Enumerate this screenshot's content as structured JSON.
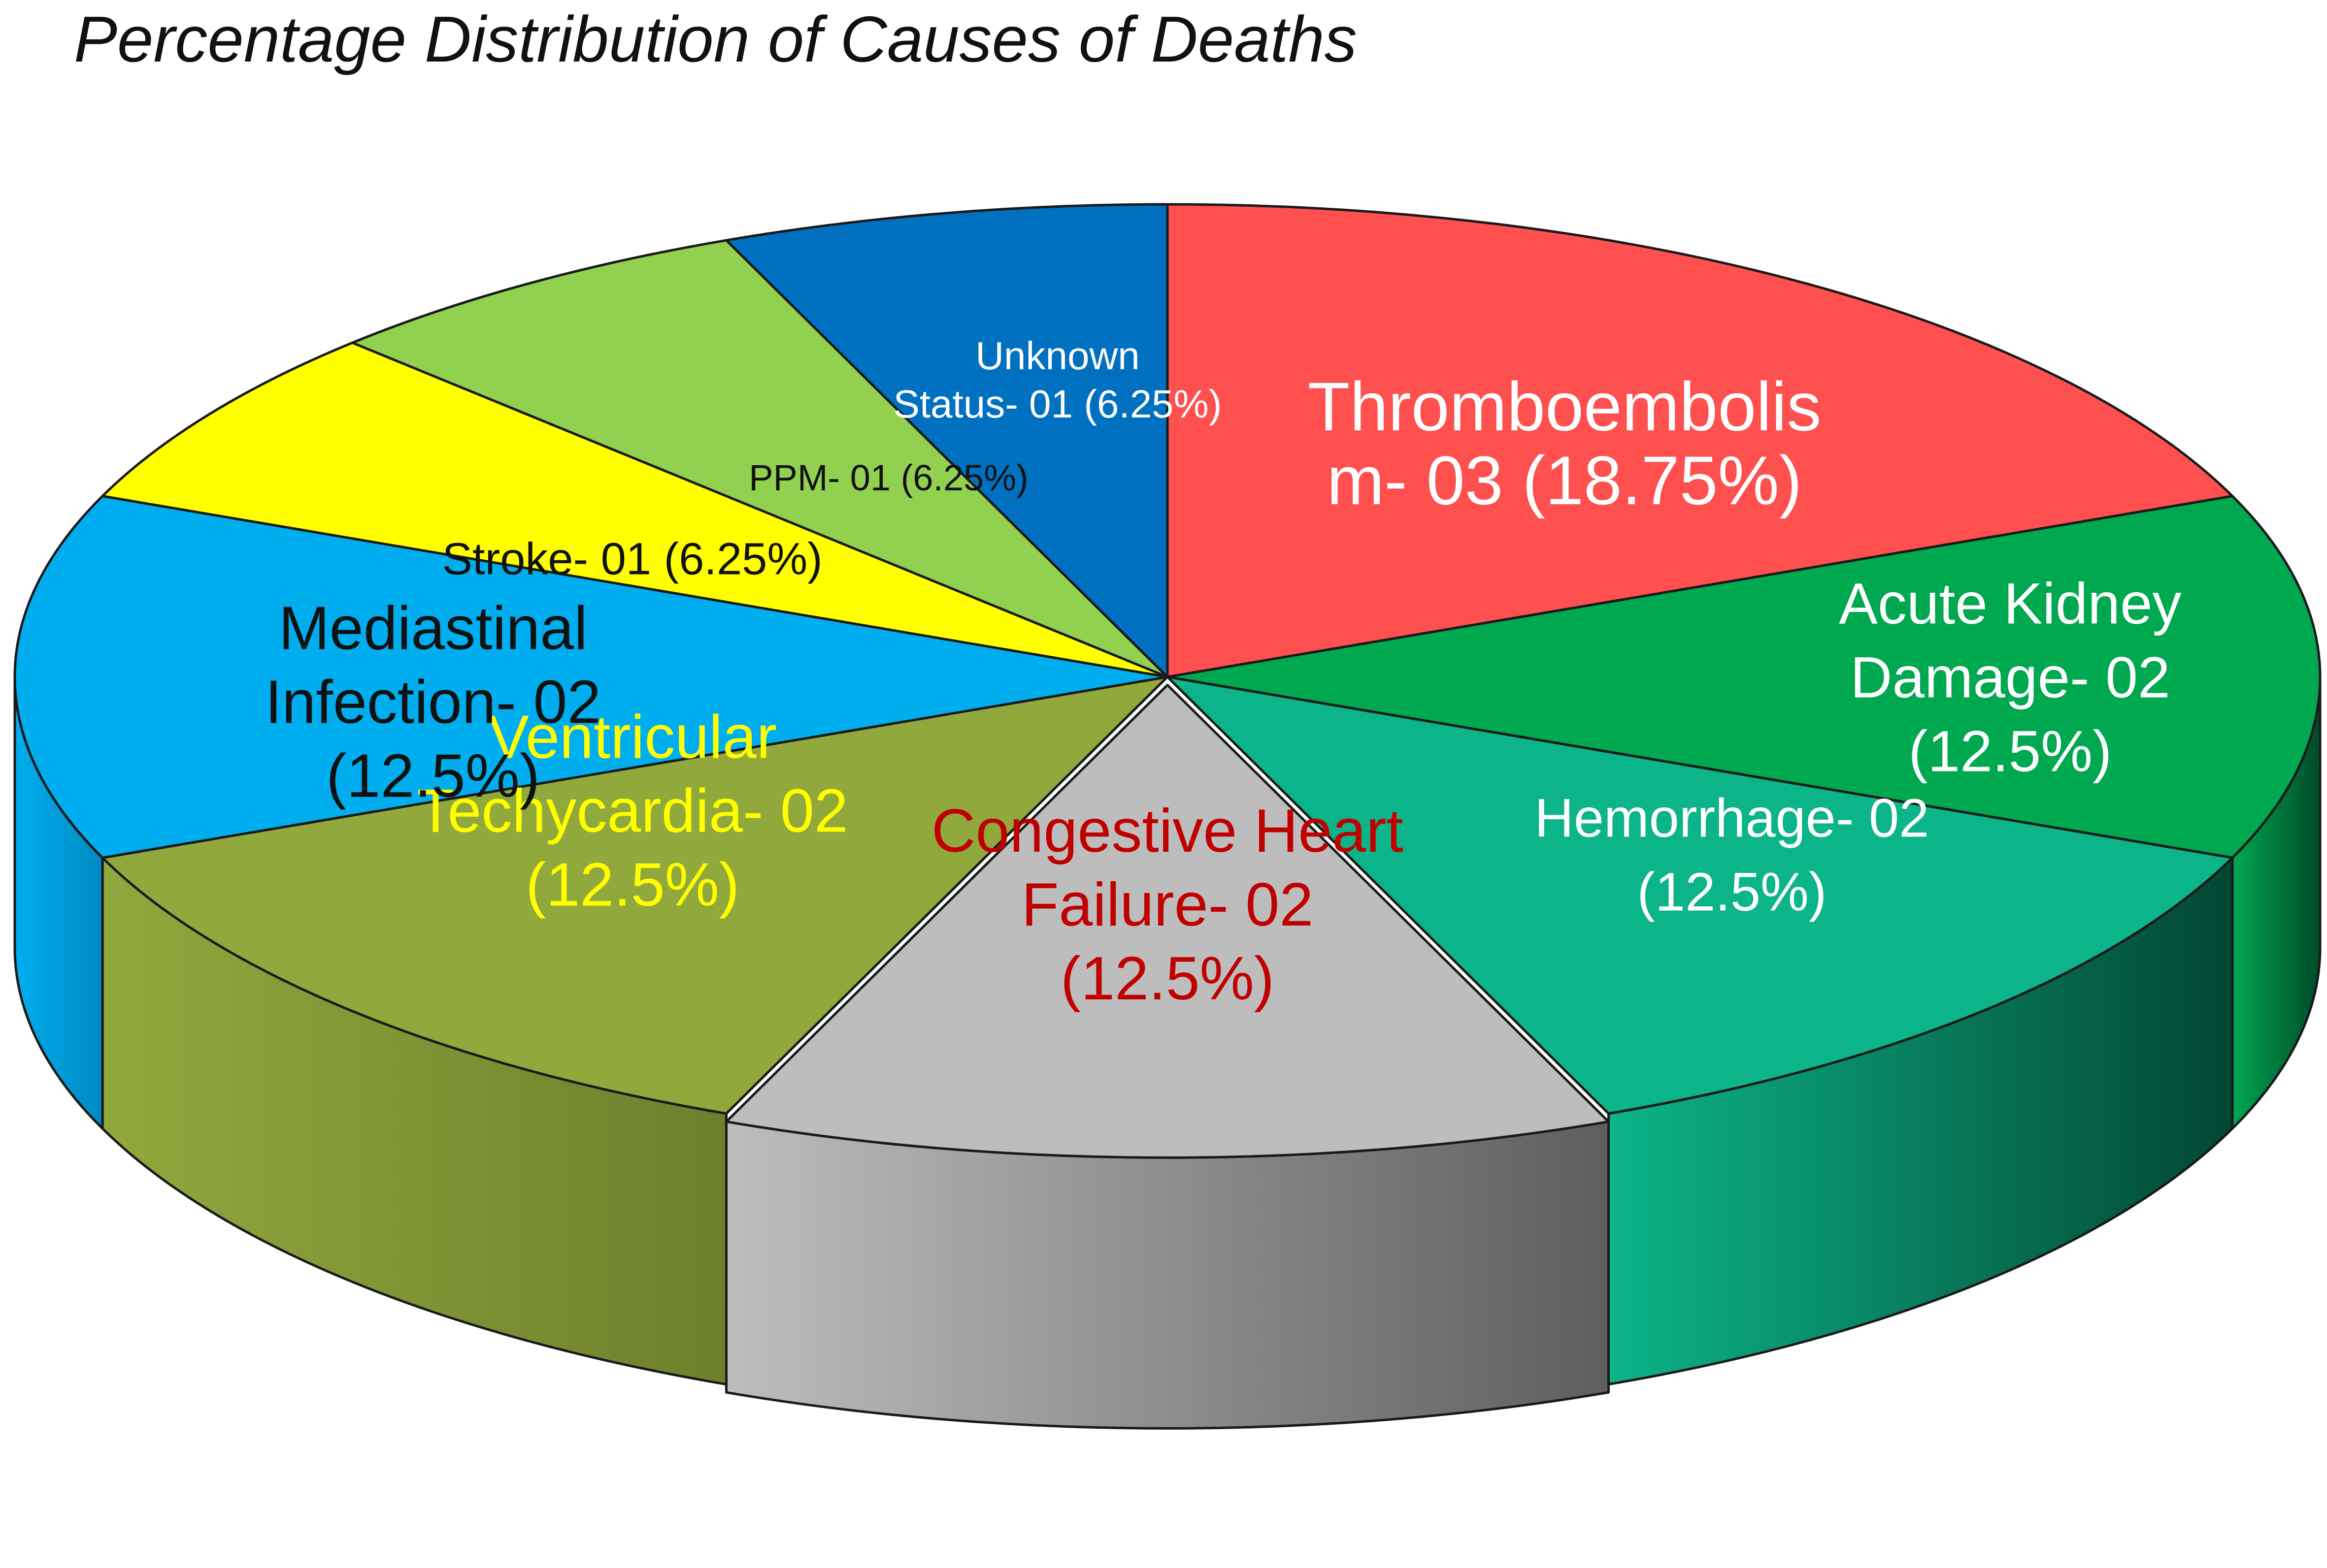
{
  "chart_data": {
    "type": "pie",
    "title": "Percentage Distribution of Causes of Deaths",
    "slices": [
      {
        "label_lines": [
          "Thromboembolis",
          "m- 03 (18.75%)"
        ],
        "count": 3,
        "percent": 18.75,
        "color": "#FF5050",
        "side_color": "#B83030",
        "label_color": "#FFFFFF"
      },
      {
        "label_lines": [
          "Acute Kidney",
          "Damage- 02",
          "(12.5%)"
        ],
        "count": 2,
        "percent": 12.5,
        "color": "#00A84F",
        "side_color": "#004A2A",
        "label_color": "#FFFFFF"
      },
      {
        "label_lines": [
          "Hemorrhage- 02",
          "(12.5%)"
        ],
        "count": 2,
        "percent": 12.5,
        "color": "#0CB489",
        "side_color": "#034632",
        "label_color": "#FFFFFF"
      },
      {
        "label_lines": [
          "Congestive Heart",
          "Failure- 02",
          "(12.5%)"
        ],
        "count": 2,
        "percent": 12.5,
        "color": "#BDBDBD",
        "side_color": "#5E5E5E",
        "label_color": "#C00000"
      },
      {
        "label_lines": [
          "Ventricular",
          "Techycardia- 02",
          "(12.5%)"
        ],
        "count": 2,
        "percent": 12.5,
        "color": "#91A83D",
        "side_color": "#6E7F2C",
        "label_color": "#FFFF00"
      },
      {
        "label_lines": [
          "Mediastinal",
          "Infection- 02",
          "(12.5%)"
        ],
        "count": 2,
        "percent": 12.5,
        "color": "#00AEEF",
        "side_color": "#0088C0",
        "label_color": "#111111"
      },
      {
        "label_lines": [
          "Stroke- 01 (6.25%)"
        ],
        "count": 1,
        "percent": 6.25,
        "color": "#FFFF00",
        "side_color": "#C8C800",
        "label_color": "#111111"
      },
      {
        "label_lines": [
          "PPM- 01 (6.25%)"
        ],
        "count": 1,
        "percent": 6.25,
        "color": "#92D050",
        "side_color": "#6A9A38",
        "label_color": "#111111"
      },
      {
        "label_lines": [
          "Unknown",
          "Status- 01 (6.25%)"
        ],
        "count": 1,
        "percent": 6.25,
        "color": "#0070C0",
        "side_color": "#004A80",
        "label_color": "#FFFFFF"
      }
    ],
    "legend": "none"
  }
}
